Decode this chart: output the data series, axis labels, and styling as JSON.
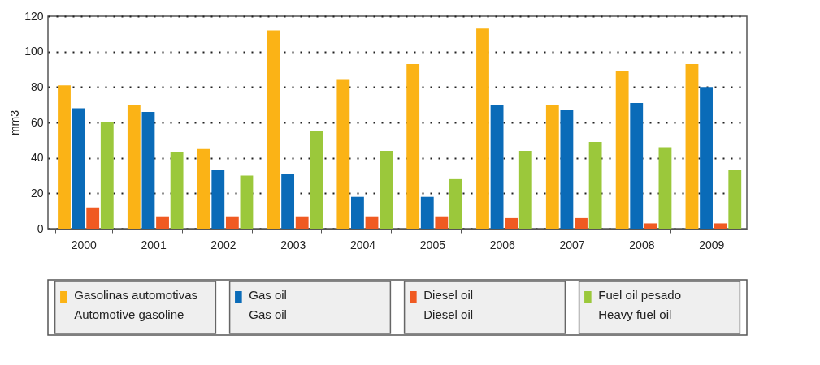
{
  "chart_data": {
    "type": "bar",
    "ylabel": "mm3",
    "categories": [
      "2000",
      "2001",
      "2002",
      "2003",
      "2004",
      "2005",
      "2006",
      "2007",
      "2008",
      "2009"
    ],
    "series": [
      {
        "name": "Gasolinas automotivas\nAutomotive gasoline",
        "color": "#fbb316",
        "values": [
          81,
          70,
          45,
          112,
          84,
          93,
          113,
          70,
          89,
          93
        ]
      },
      {
        "name": "Gas oil\nGas oil",
        "color": "#0a6bb8",
        "values": [
          68,
          66,
          33,
          31,
          18,
          18,
          70,
          67,
          71,
          80
        ]
      },
      {
        "name": "Diesel  oil\nDiesel  oil",
        "color": "#f05a22",
        "values": [
          12,
          7,
          7,
          7,
          7,
          7,
          6,
          6,
          3,
          3
        ]
      },
      {
        "name": "Fuel  oil pesado\nHeavy fuel oil",
        "color": "#9bc83b",
        "values": [
          60,
          43,
          30,
          55,
          44,
          28,
          44,
          49,
          46,
          33
        ]
      }
    ],
    "ylim": [
      0,
      120
    ],
    "yticks": [
      0,
      20,
      40,
      60,
      80,
      100,
      120
    ],
    "grid": "y",
    "legend": "bottom"
  }
}
